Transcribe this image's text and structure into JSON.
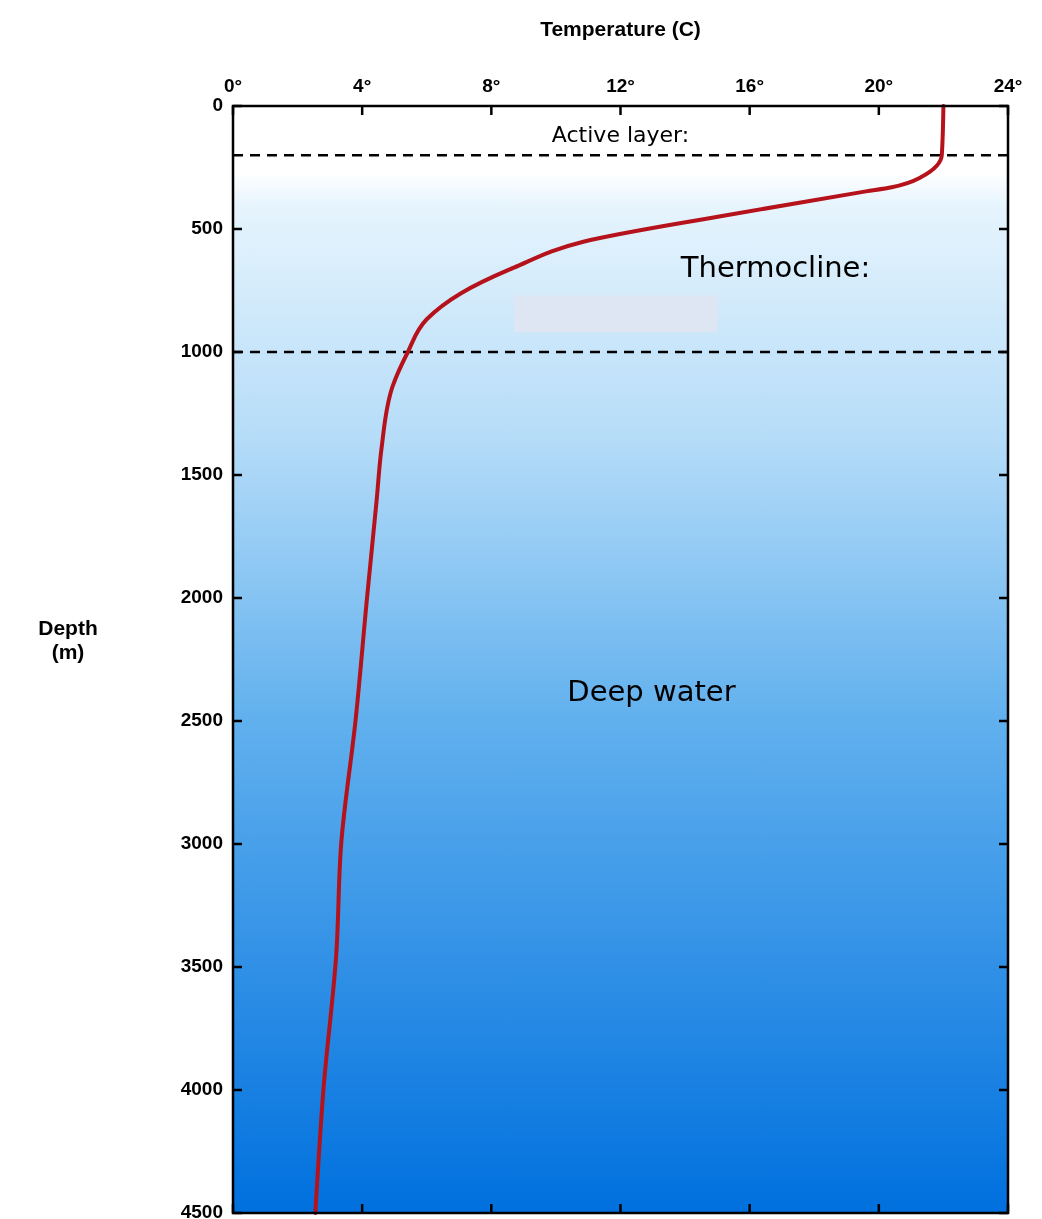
{
  "chart_data": {
    "type": "line",
    "xlabel": "Temperature (C)",
    "ylabel": "Depth (m)",
    "xlim": [
      0,
      24
    ],
    "xticks": [
      {
        "value": 0,
        "label": "0°"
      },
      {
        "value": 4,
        "label": "4°"
      },
      {
        "value": 8,
        "label": "8°"
      },
      {
        "value": 12,
        "label": "12°"
      },
      {
        "value": 16,
        "label": "16°"
      },
      {
        "value": 20,
        "label": "20°"
      },
      {
        "value": 24,
        "label": "24°"
      }
    ],
    "ylim": [
      4500,
      0
    ],
    "yticks": [
      0,
      500,
      1000,
      1500,
      2000,
      2500,
      3000,
      3500,
      4000,
      4500
    ],
    "series": [
      {
        "color": "#b5121b",
        "x": [
          22.0,
          21.95,
          21.3,
          20.4,
          19.6,
          15.1,
          10.85,
          8.7,
          7.05,
          6.0,
          5.4,
          4.95,
          4.6,
          4.45,
          4.15,
          3.8,
          3.35,
          3.2,
          2.8,
          2.55
        ],
        "values": [
          0,
          200,
          290,
          330,
          347,
          448,
          552,
          657,
          762,
          867,
          1004,
          1137,
          1391,
          1600,
          2000,
          2492,
          3000,
          3444,
          4000,
          4500
        ]
      }
    ],
    "ref_lines": [
      {
        "axis": "y",
        "value": 200,
        "color": "#000000",
        "line_style": "dashed"
      },
      {
        "axis": "y",
        "value": 1000,
        "color": "#000000",
        "line_style": "dashed"
      }
    ],
    "annotations": [
      "Active layer:",
      "Thermocline:",
      "Deep water"
    ],
    "grid": false,
    "marker": "none",
    "line_style": "solid"
  }
}
